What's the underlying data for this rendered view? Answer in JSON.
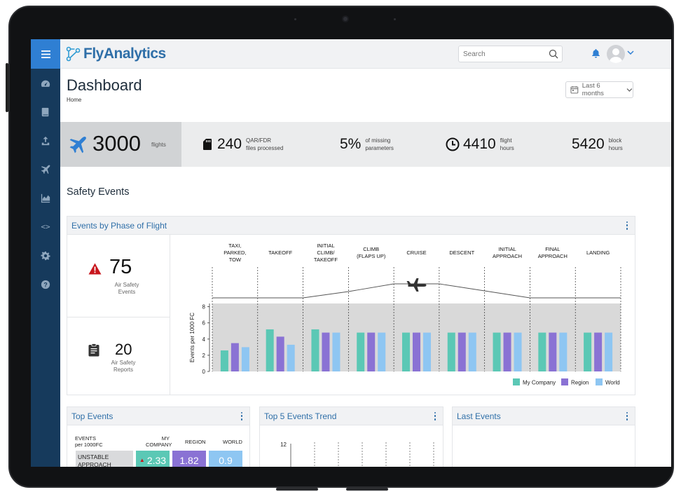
{
  "app": {
    "name": "FlyAnalytics"
  },
  "colors": {
    "sidebar": "#163a5c",
    "accent": "#2f7fd3",
    "my_company": "#5bc8b5",
    "region": "#8a72d4",
    "world": "#8ec6f2"
  },
  "sidebar": {
    "items": [
      {
        "icon": "menu-icon"
      },
      {
        "icon": "speedometer-icon"
      },
      {
        "icon": "book-icon"
      },
      {
        "icon": "upload-icon"
      },
      {
        "icon": "airplane-icon"
      },
      {
        "icon": "area-chart-icon"
      },
      {
        "icon": "code-icon",
        "label": "<>"
      },
      {
        "icon": "gear-icon"
      },
      {
        "icon": "help-icon",
        "label": "?"
      }
    ]
  },
  "header": {
    "search_placeholder": "Search",
    "title": "Dashboard",
    "breadcrumb": "Home",
    "date_range": "Last 6 months"
  },
  "stats": {
    "flights": {
      "value": "3000",
      "label": "flights"
    },
    "files": {
      "value": "240",
      "label_line1": "QAR/FDR",
      "label_line2": "files processed"
    },
    "missing": {
      "value": "5%",
      "label_line1": "of missing",
      "label_line2": "parameters"
    },
    "flight_hours": {
      "value": "4410",
      "label_line1": "flight",
      "label_line2": "hours"
    },
    "block_hours": {
      "value": "5420",
      "label_line1": "block",
      "label_line2": "hours"
    }
  },
  "safety": {
    "section_title": "Safety Events",
    "panel_title": "Events by Phase of Flight",
    "air_safety_events": {
      "value": "75",
      "label_line1": "Air Safety",
      "label_line2": "Events"
    },
    "air_safety_reports": {
      "value": "20",
      "label_line1": "Air Safety",
      "label_line2": "Reports"
    }
  },
  "chart_data": {
    "type": "bar",
    "categories": [
      [
        "TAXI,",
        "PARKED,",
        "TOW"
      ],
      [
        "TAKEOFF"
      ],
      [
        "INITIAL",
        "CLIMB/",
        "TAKEOFF"
      ],
      [
        "CLIMB",
        "(FLAPS UP)"
      ],
      [
        "CRUISE"
      ],
      [
        "DESCENT"
      ],
      [
        "INITIAL",
        "APPROACH"
      ],
      [
        "FINAL",
        "APPROACH"
      ],
      [
        "LANDING"
      ]
    ],
    "series": [
      {
        "name": "My Company",
        "values": [
          2.6,
          5.2,
          5.2,
          4.8,
          4.8,
          4.8,
          4.8,
          4.8,
          4.8
        ]
      },
      {
        "name": "Region",
        "values": [
          3.5,
          4.3,
          4.8,
          4.8,
          4.8,
          4.8,
          4.8,
          4.8,
          4.8
        ]
      },
      {
        "name": "World",
        "values": [
          3.0,
          3.3,
          4.8,
          4.8,
          4.8,
          4.8,
          4.8,
          4.8,
          4.8
        ]
      }
    ],
    "ylabel": "Events per 1000 FC",
    "yticks": [
      "0",
      "2",
      "4",
      "6",
      "8"
    ],
    "ylim": [
      0,
      8.4
    ],
    "grid": false,
    "legend_position": "bottom-right"
  },
  "panels": {
    "top_events": {
      "title": "Top Events",
      "col_events_1": "EVENTS",
      "col_events_2": "per 1000FC",
      "col_company_1": "MY",
      "col_company_2": "COMPANY",
      "col_region": "REGION",
      "col_world": "WORLD",
      "row1_name_1": "UNSTABLE",
      "row1_name_2": "APPROACH",
      "row1_company": "2.33",
      "row1_region": "1.82",
      "row1_world": "0.9"
    },
    "trend": {
      "title": "Top 5 Events Trend",
      "ytick_top": "12"
    },
    "last": {
      "title": "Last Events"
    }
  }
}
